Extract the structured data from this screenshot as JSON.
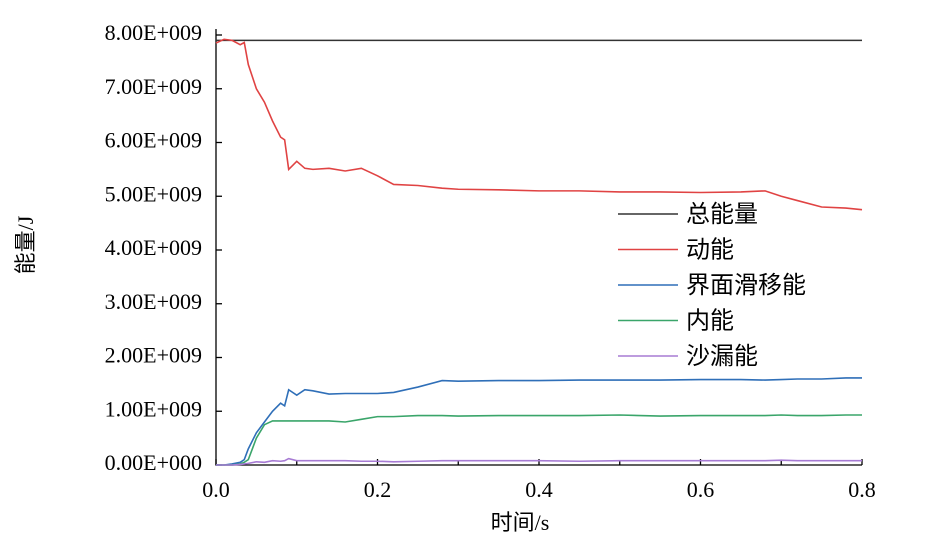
{
  "chart_data": {
    "type": "line",
    "x_label": "时间/s",
    "y_label": "能量/J",
    "x": [
      0,
      0.01,
      0.02,
      0.03,
      0.035,
      0.04,
      0.05,
      0.06,
      0.07,
      0.08,
      0.085,
      0.09,
      0.1,
      0.11,
      0.12,
      0.14,
      0.16,
      0.18,
      0.2,
      0.22,
      0.25,
      0.28,
      0.3,
      0.35,
      0.4,
      0.45,
      0.5,
      0.55,
      0.6,
      0.65,
      0.68,
      0.7,
      0.72,
      0.75,
      0.78,
      0.8
    ],
    "series": [
      {
        "name": "总能量",
        "color": "#333333",
        "values": [
          7900000000.0,
          7900000000.0,
          7900000000.0,
          7900000000.0,
          7900000000.0,
          7900000000.0,
          7900000000.0,
          7900000000.0,
          7900000000.0,
          7900000000.0,
          7900000000.0,
          7900000000.0,
          7900000000.0,
          7900000000.0,
          7900000000.0,
          7900000000.0,
          7900000000.0,
          7900000000.0,
          7900000000.0,
          7900000000.0,
          7900000000.0,
          7900000000.0,
          7900000000.0,
          7900000000.0,
          7900000000.0,
          7900000000.0,
          7900000000.0,
          7900000000.0,
          7900000000.0,
          7900000000.0,
          7900000000.0,
          7900000000.0,
          7900000000.0,
          7900000000.0,
          7900000000.0,
          7900000000.0
        ]
      },
      {
        "name": "动能",
        "color": "#e04343",
        "values": [
          7850000000.0,
          7920000000.0,
          7900000000.0,
          7820000000.0,
          7860000000.0,
          7450000000.0,
          7000000000.0,
          6750000000.0,
          6400000000.0,
          6100000000.0,
          6050000000.0,
          5500000000.0,
          5650000000.0,
          5520000000.0,
          5500000000.0,
          5520000000.0,
          5470000000.0,
          5520000000.0,
          5380000000.0,
          5220000000.0,
          5200000000.0,
          5150000000.0,
          5130000000.0,
          5120000000.0,
          5100000000.0,
          5100000000.0,
          5080000000.0,
          5080000000.0,
          5070000000.0,
          5080000000.0,
          5100000000.0,
          5000000000.0,
          4920000000.0,
          4800000000.0,
          4780000000.0,
          4750000000.0
        ]
      },
      {
        "name": "界面滑移能",
        "color": "#2f6fb8",
        "values": [
          0,
          0,
          20000000.0,
          50000000.0,
          100000000.0,
          300000000.0,
          600000000.0,
          800000000.0,
          1000000000.0,
          1150000000.0,
          1100000000.0,
          1400000000.0,
          1300000000.0,
          1400000000.0,
          1380000000.0,
          1320000000.0,
          1330000000.0,
          1330000000.0,
          1330000000.0,
          1350000000.0,
          1450000000.0,
          1570000000.0,
          1560000000.0,
          1570000000.0,
          1570000000.0,
          1580000000.0,
          1580000000.0,
          1580000000.0,
          1590000000.0,
          1590000000.0,
          1580000000.0,
          1590000000.0,
          1600000000.0,
          1600000000.0,
          1620000000.0,
          1620000000.0
        ]
      },
      {
        "name": "内能",
        "color": "#3aa56a",
        "values": [
          0,
          0,
          0,
          20000000.0,
          50000000.0,
          100000000.0,
          500000000.0,
          750000000.0,
          820000000.0,
          820000000.0,
          820000000.0,
          820000000.0,
          820000000.0,
          820000000.0,
          820000000.0,
          820000000.0,
          800000000.0,
          850000000.0,
          900000000.0,
          900000000.0,
          920000000.0,
          920000000.0,
          910000000.0,
          920000000.0,
          920000000.0,
          920000000.0,
          930000000.0,
          910000000.0,
          920000000.0,
          920000000.0,
          920000000.0,
          930000000.0,
          920000000.0,
          920000000.0,
          930000000.0,
          930000000.0
        ]
      },
      {
        "name": "沙漏能",
        "color": "#a77bd4",
        "values": [
          0,
          0,
          0,
          10000000.0,
          20000000.0,
          30000000.0,
          60000000.0,
          50000000.0,
          80000000.0,
          70000000.0,
          80000000.0,
          120000000.0,
          80000000.0,
          80000000.0,
          80000000.0,
          80000000.0,
          80000000.0,
          70000000.0,
          70000000.0,
          60000000.0,
          70000000.0,
          80000000.0,
          80000000.0,
          80000000.0,
          80000000.0,
          70000000.0,
          80000000.0,
          80000000.0,
          80000000.0,
          80000000.0,
          80000000.0,
          90000000.0,
          80000000.0,
          80000000.0,
          80000000.0,
          80000000.0
        ]
      }
    ],
    "xlim": [
      0,
      0.8
    ],
    "xticks": [
      {
        "value": 0,
        "label": "0.0"
      },
      0.2,
      0.4,
      0.6,
      0.8
    ],
    "ylim": [
      0,
      8000000000
    ],
    "yticks": [
      {
        "value": 0,
        "label": "0.00E+000"
      },
      {
        "value": 1000000000,
        "label": "1.00E+009"
      },
      {
        "value": 2000000000,
        "label": "2.00E+009"
      },
      {
        "value": 3000000000,
        "label": "3.00E+009"
      },
      {
        "value": 4000000000,
        "label": "4.00E+009"
      },
      {
        "value": 5000000000,
        "label": "5.00E+009"
      },
      {
        "value": 6000000000,
        "label": "6.00E+009"
      },
      {
        "value": 7000000000,
        "label": "7.00E+009"
      },
      {
        "value": 8000000000,
        "label": "8.00E+009"
      }
    ],
    "grid": false,
    "legend_position": "right"
  }
}
